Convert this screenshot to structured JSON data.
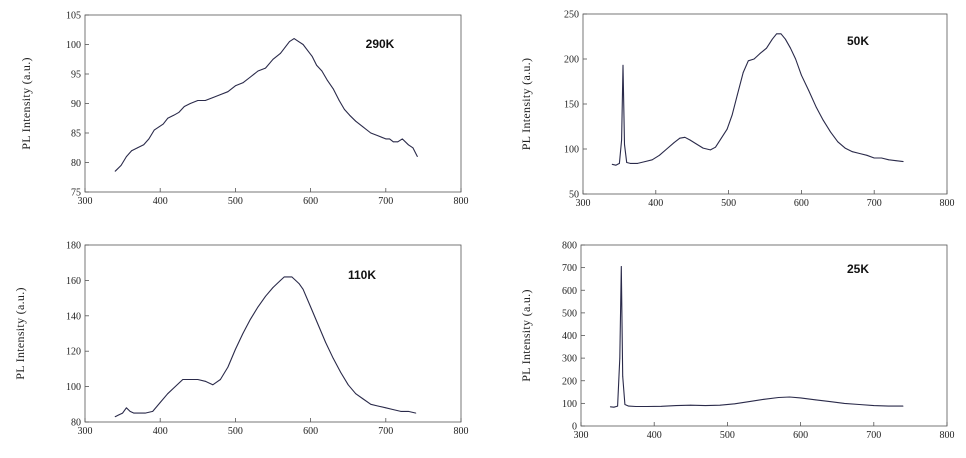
{
  "chart_data": [
    {
      "type": "line",
      "annotation": "290K",
      "ylabel": "PL Intensity (a.u.)",
      "xlim": [
        300,
        800
      ],
      "ylim": [
        75,
        105
      ],
      "xticks": [
        300,
        400,
        500,
        600,
        700,
        800
      ],
      "yticks": [
        75,
        80,
        85,
        90,
        95,
        100,
        105
      ],
      "series": [
        {
          "x": [
            340,
            348,
            355,
            362,
            370,
            378,
            385,
            392,
            398,
            404,
            410,
            418,
            425,
            432,
            440,
            450,
            460,
            470,
            480,
            490,
            500,
            510,
            520,
            530,
            540,
            550,
            560,
            566,
            572,
            578,
            584,
            590,
            596,
            602,
            608,
            615,
            622,
            630,
            638,
            645,
            652,
            660,
            670,
            680,
            690,
            700,
            705,
            710,
            716,
            722,
            730,
            736,
            742
          ],
          "y": [
            78.5,
            79.5,
            81,
            82,
            82.5,
            83,
            84,
            85.5,
            86,
            86.5,
            87.5,
            88,
            88.5,
            89.5,
            90,
            90.5,
            90.5,
            91,
            91.5,
            92,
            93,
            93.5,
            94.5,
            95.5,
            96,
            97.5,
            98.5,
            99.5,
            100.5,
            101,
            100.5,
            100,
            99,
            98,
            96.5,
            95.5,
            94,
            92.5,
            90.5,
            89,
            88,
            87,
            86,
            85,
            84.5,
            84,
            84,
            83.5,
            83.5,
            84,
            83,
            82.5,
            81
          ]
        }
      ]
    },
    {
      "type": "line",
      "annotation": "50K",
      "ylabel": "PL Intensity (a.u.)",
      "xlim": [
        300,
        800
      ],
      "ylim": [
        50,
        250
      ],
      "xticks": [
        300,
        400,
        500,
        600,
        700,
        800
      ],
      "yticks": [
        50,
        100,
        150,
        200,
        250
      ],
      "series": [
        {
          "x": [
            340,
            345,
            350,
            353,
            355,
            357,
            360,
            365,
            375,
            385,
            395,
            405,
            415,
            425,
            433,
            440,
            447,
            455,
            465,
            475,
            482,
            490,
            498,
            505,
            512,
            520,
            527,
            535,
            543,
            552,
            560,
            566,
            572,
            578,
            585,
            592,
            600,
            610,
            620,
            630,
            640,
            650,
            660,
            670,
            680,
            690,
            700,
            710,
            720,
            730,
            740
          ],
          "y": [
            83,
            82,
            84,
            110,
            193,
            105,
            85,
            84,
            84,
            86,
            88,
            93,
            100,
            107,
            112,
            113,
            110,
            106,
            101,
            99,
            102,
            112,
            122,
            138,
            160,
            185,
            198,
            200,
            206,
            212,
            222,
            228,
            228,
            222,
            212,
            200,
            182,
            165,
            147,
            132,
            119,
            108,
            101,
            97,
            95,
            93,
            90,
            90,
            88,
            87,
            86
          ]
        }
      ]
    },
    {
      "type": "line",
      "annotation": "110K",
      "ylabel": "PL Intensity (a.u.)",
      "xlim": [
        300,
        800
      ],
      "ylim": [
        80,
        180
      ],
      "xticks": [
        300,
        400,
        500,
        600,
        700,
        800
      ],
      "yticks": [
        80,
        100,
        120,
        140,
        160,
        180
      ],
      "series": [
        {
          "x": [
            340,
            345,
            350,
            355,
            360,
            365,
            370,
            380,
            390,
            400,
            410,
            420,
            430,
            440,
            450,
            460,
            470,
            480,
            490,
            500,
            510,
            520,
            530,
            540,
            550,
            560,
            565,
            570,
            575,
            580,
            585,
            590,
            600,
            610,
            620,
            630,
            640,
            650,
            660,
            670,
            680,
            690,
            700,
            710,
            720,
            730,
            740
          ],
          "y": [
            83,
            84,
            85,
            88,
            86,
            85,
            85,
            85,
            86,
            91,
            96,
            100,
            104,
            104,
            104,
            103,
            101,
            104,
            111,
            121,
            130,
            138,
            145,
            151,
            156,
            160,
            162,
            162,
            162,
            160,
            158,
            155,
            145,
            135,
            125,
            116,
            108,
            101,
            96,
            93,
            90,
            89,
            88,
            87,
            86,
            86,
            85
          ]
        }
      ]
    },
    {
      "type": "line",
      "annotation": "25K",
      "ylabel": "PL Intensity (a.u.)",
      "xlim": [
        300,
        800
      ],
      "ylim": [
        0,
        800
      ],
      "xticks": [
        300,
        400,
        500,
        600,
        700,
        800
      ],
      "yticks": [
        0,
        100,
        200,
        300,
        400,
        500,
        600,
        700,
        800
      ],
      "series": [
        {
          "x": [
            340,
            345,
            350,
            353,
            355,
            357,
            360,
            365,
            375,
            390,
            410,
            430,
            450,
            470,
            490,
            510,
            530,
            550,
            570,
            585,
            600,
            620,
            640,
            660,
            680,
            700,
            720,
            740
          ],
          "y": [
            85,
            83,
            88,
            300,
            705,
            220,
            95,
            88,
            86,
            86,
            87,
            90,
            92,
            90,
            92,
            98,
            108,
            118,
            126,
            128,
            124,
            116,
            108,
            100,
            95,
            90,
            88,
            88
          ]
        }
      ]
    }
  ]
}
